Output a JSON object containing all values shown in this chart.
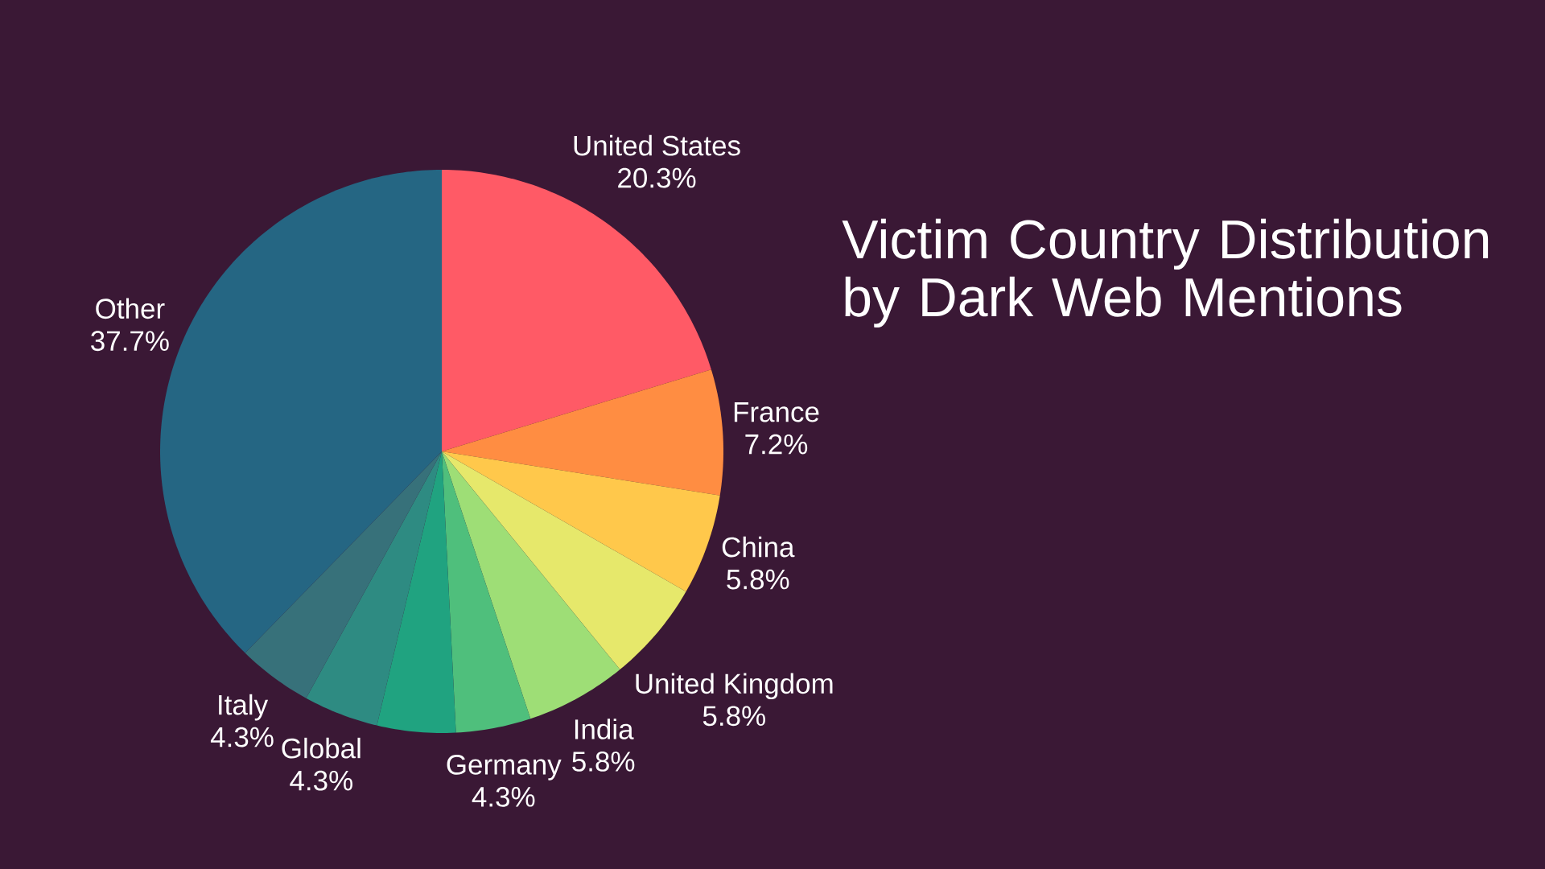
{
  "chart_data": {
    "type": "pie",
    "title": "Victim Country Distribution by Dark Web Mentions",
    "categories": [
      "United States",
      "France",
      "China",
      "United Kingdom",
      "India",
      "Germany",
      null,
      "Global",
      "Italy",
      "Other"
    ],
    "values": [
      20.3,
      7.2,
      5.8,
      5.8,
      5.8,
      4.3,
      4.5,
      4.3,
      4.3,
      37.7
    ],
    "value_labels": [
      "20.3%",
      "7.2%",
      "5.8%",
      "5.8%",
      "5.8%",
      "4.3%",
      null,
      "4.3%",
      "4.3%",
      "37.7%"
    ],
    "colors": [
      "#ff5a66",
      "#ff8d42",
      "#ffc84b",
      "#e6e86b",
      "#9ede76",
      "#4fbf7c",
      "#20a380",
      "#2e8b82",
      "#37717a",
      "#256683"
    ]
  }
}
